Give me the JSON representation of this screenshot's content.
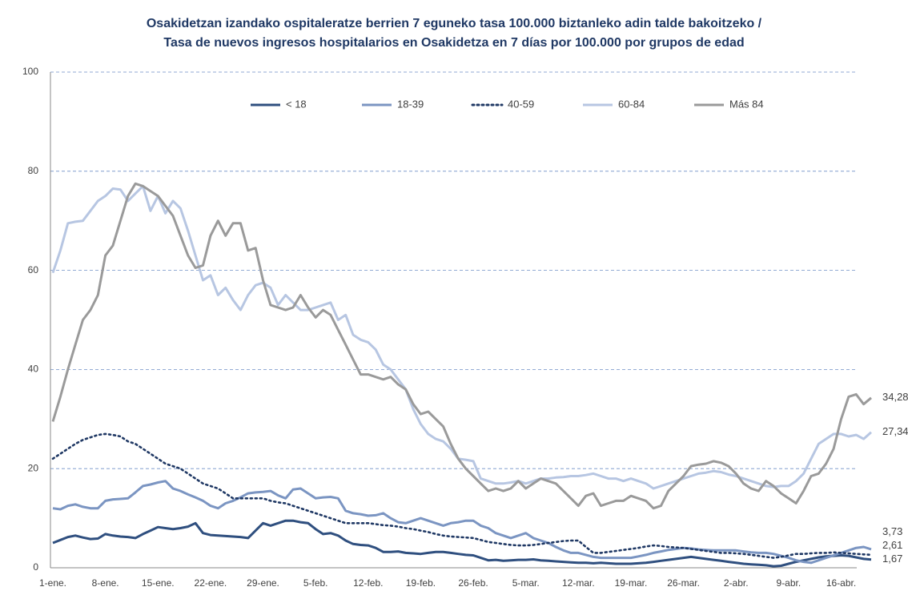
{
  "chart_data": {
    "type": "line",
    "title": [
      "Osakidetzan izandako ospitaleratze berrien 7 eguneko tasa 100.000 biztanleko adin talde bakoitzeko /",
      "Tasa de nuevos ingresos hospitalarios en Osakidetza en 7 días por 100.000 por grupos de edad"
    ],
    "categories": [
      "1-ene.",
      null,
      null,
      null,
      null,
      null,
      null,
      "8-ene.",
      null,
      null,
      null,
      null,
      null,
      null,
      "15-ene.",
      null,
      null,
      null,
      null,
      null,
      null,
      "22-ene.",
      null,
      null,
      null,
      null,
      null,
      null,
      "29-ene.",
      null,
      null,
      null,
      null,
      null,
      null,
      "5-feb.",
      null,
      null,
      null,
      null,
      null,
      null,
      "12-feb.",
      null,
      null,
      null,
      null,
      null,
      null,
      "19-feb.",
      null,
      null,
      null,
      null,
      null,
      null,
      "26-feb.",
      null,
      null,
      null,
      null,
      null,
      null,
      "5-mar.",
      null,
      null,
      null,
      null,
      null,
      null,
      "12-mar.",
      null,
      null,
      null,
      null,
      null,
      null,
      "19-mar.",
      null,
      null,
      null,
      null,
      null,
      null,
      "26-mar.",
      null,
      null,
      null,
      null,
      null,
      null,
      "2-abr.",
      null,
      null,
      null,
      null,
      null,
      null,
      "9-abr.",
      null,
      null,
      null,
      null,
      null,
      null,
      "16-abr.",
      null,
      null,
      null,
      null
    ],
    "series": [
      {
        "name": "< 18",
        "color": "#2f4f7f",
        "style": "solid",
        "end_label": "1,67",
        "values": [
          5,
          5.6,
          6.2,
          6.5,
          6.1,
          5.8,
          5.9,
          6.8,
          6.5,
          6.3,
          6.2,
          6.0,
          6.8,
          7.5,
          8.2,
          8.0,
          7.8,
          8.0,
          8.3,
          9.0,
          7.0,
          6.6,
          6.5,
          6.4,
          6.3,
          6.2,
          6.0,
          7.5,
          9.0,
          8.5,
          9.0,
          9.5,
          9.5,
          9.2,
          9.0,
          7.8,
          6.8,
          7.0,
          6.5,
          5.5,
          4.8,
          4.6,
          4.5,
          4.0,
          3.2,
          3.2,
          3.3,
          3.0,
          2.9,
          2.8,
          3.0,
          3.2,
          3.2,
          3.0,
          2.8,
          2.6,
          2.5,
          2.0,
          1.5,
          1.6,
          1.4,
          1.5,
          1.6,
          1.6,
          1.7,
          1.5,
          1.4,
          1.3,
          1.2,
          1.1,
          1.0,
          1.0,
          0.9,
          1.0,
          0.9,
          0.8,
          0.8,
          0.8,
          0.9,
          1.0,
          1.2,
          1.4,
          1.6,
          1.8,
          2.0,
          2.2,
          2.0,
          1.8,
          1.6,
          1.4,
          1.2,
          1.0,
          0.8,
          0.7,
          0.6,
          0.5,
          0.3,
          0.4,
          0.8,
          1.2,
          1.5,
          1.8,
          2.1,
          2.3,
          2.4,
          2.5,
          2.4,
          2.1,
          1.8,
          1.67
        ]
      },
      {
        "name": "18-39",
        "color": "#7b95c2",
        "style": "solid",
        "end_label": "3,73",
        "values": [
          12,
          11.8,
          12.5,
          12.8,
          12.3,
          12.0,
          12.0,
          13.5,
          13.8,
          13.9,
          14.0,
          15.2,
          16.5,
          16.8,
          17.2,
          17.5,
          16.0,
          15.5,
          14.8,
          14.2,
          13.5,
          12.5,
          12.0,
          13.0,
          13.5,
          14.2,
          15.0,
          15.2,
          15.3,
          15.5,
          14.6,
          14.0,
          15.8,
          16.0,
          15.0,
          14.0,
          14.2,
          14.3,
          14.0,
          11.5,
          11.0,
          10.8,
          10.5,
          10.6,
          11.0,
          10.0,
          9.2,
          9.0,
          9.5,
          10.0,
          9.5,
          9.0,
          8.5,
          9.0,
          9.2,
          9.5,
          9.5,
          8.5,
          8.0,
          7.0,
          6.5,
          6.0,
          6.5,
          7.0,
          6.0,
          5.5,
          5.0,
          4.2,
          3.5,
          3.0,
          3.0,
          2.6,
          2.2,
          2.0,
          2.0,
          2.0,
          2.0,
          2.0,
          2.3,
          2.6,
          3.0,
          3.3,
          3.6,
          3.8,
          4.0,
          3.9,
          3.7,
          3.6,
          3.5,
          3.5,
          3.5,
          3.5,
          3.3,
          3.1,
          3.0,
          3.0,
          2.8,
          2.4,
          2.0,
          1.5,
          1.2,
          1.0,
          1.5,
          2.0,
          2.5,
          3.0,
          3.5,
          4.0,
          4.2,
          3.73
        ]
      },
      {
        "name": "40-59",
        "color": "#1f3864",
        "style": "dotted",
        "end_label": "2,61",
        "values": [
          22,
          23,
          24,
          25,
          25.8,
          26.3,
          26.8,
          27,
          26.8,
          26.5,
          25.5,
          25,
          24,
          23,
          22,
          21,
          20.5,
          20,
          19,
          18,
          17,
          16.5,
          16,
          15,
          14,
          14,
          14,
          14,
          14,
          13.5,
          13.2,
          13,
          12.5,
          12,
          11.5,
          11,
          10.5,
          10,
          9.5,
          9,
          9,
          9,
          9,
          8.8,
          8.6,
          8.5,
          8.3,
          8,
          7.8,
          7.5,
          7.2,
          6.8,
          6.5,
          6.3,
          6.2,
          6.1,
          6,
          5.6,
          5.2,
          5,
          4.8,
          4.6,
          4.5,
          4.5,
          4.6,
          4.8,
          5,
          5.2,
          5.4,
          5.5,
          5.5,
          4.2,
          3,
          3,
          3.2,
          3.4,
          3.6,
          3.8,
          4.0,
          4.3,
          4.5,
          4.4,
          4.2,
          4.1,
          4.0,
          3.8,
          3.6,
          3.4,
          3.2,
          3.0,
          3.0,
          2.9,
          2.8,
          2.6,
          2.4,
          2.2,
          2.0,
          2.2,
          2.5,
          2.8,
          2.8,
          2.9,
          3.0,
          3.0,
          3.1,
          3.0,
          2.9,
          2.8,
          2.7,
          2.61
        ]
      },
      {
        "name": "60-84",
        "color": "#b7c6e2",
        "style": "solid",
        "end_label": "27,34",
        "values": [
          59.5,
          64,
          69.5,
          69.8,
          70,
          72,
          74,
          75,
          76.5,
          76.3,
          74,
          75.5,
          77,
          72,
          75,
          71.5,
          74,
          72.5,
          68,
          63,
          58,
          59,
          55,
          56.5,
          54,
          52,
          55,
          57,
          57.5,
          56.5,
          53,
          55,
          53.5,
          52,
          52,
          52.5,
          53,
          53.5,
          50,
          51,
          47,
          46,
          45.5,
          44,
          41,
          40,
          38,
          36,
          32,
          29,
          27,
          26,
          25.5,
          24,
          22,
          21.8,
          21.5,
          18,
          17.5,
          17,
          17,
          17.2,
          17.5,
          17,
          17.5,
          18,
          18,
          18.2,
          18.3,
          18.5,
          18.5,
          18.7,
          19,
          18.5,
          18,
          18,
          17.5,
          18,
          17.5,
          17,
          16,
          16.5,
          17,
          17.5,
          18,
          18.5,
          19,
          19.2,
          19.5,
          19.3,
          18.8,
          18.5,
          18,
          17.5,
          17,
          16.5,
          16.3,
          16.5,
          16.5,
          17.5,
          19,
          22,
          25,
          26,
          27,
          27,
          26.5,
          26.8,
          26,
          27.34
        ]
      },
      {
        "name": "Más 84",
        "color": "#9a9a9a",
        "style": "solid",
        "end_label": "34,28",
        "values": [
          29.5,
          34.5,
          40,
          45,
          50,
          52,
          55,
          63,
          65,
          70,
          75,
          77.5,
          77,
          76,
          75,
          73,
          71,
          67,
          63,
          60.5,
          61,
          67,
          70,
          67,
          69.5,
          69.5,
          64,
          64.5,
          58,
          53,
          52.5,
          52,
          52.5,
          55,
          52.5,
          50.5,
          52,
          51,
          48,
          45,
          42,
          39,
          39,
          38.5,
          38,
          38.5,
          37,
          36,
          33,
          31,
          31.5,
          30,
          28.5,
          25,
          22,
          20,
          18.5,
          17,
          15.5,
          16,
          15.5,
          16,
          17.5,
          16,
          17,
          18,
          17.5,
          17,
          15.5,
          14,
          12.5,
          14.5,
          15,
          12.5,
          13,
          13.5,
          13.5,
          14.5,
          14,
          13.5,
          12,
          12.5,
          15.5,
          17,
          18.5,
          20.5,
          20.8,
          21,
          21.5,
          21.2,
          20.5,
          19,
          17,
          16,
          15.5,
          17.5,
          16.5,
          15,
          14,
          13,
          15.5,
          18.5,
          19,
          21,
          24,
          30,
          34.5,
          35,
          33,
          34.28
        ]
      }
    ],
    "ylim": [
      0,
      100
    ],
    "yticks": [
      0,
      20,
      40,
      60,
      80,
      100
    ],
    "grid": true,
    "legend": "top"
  }
}
